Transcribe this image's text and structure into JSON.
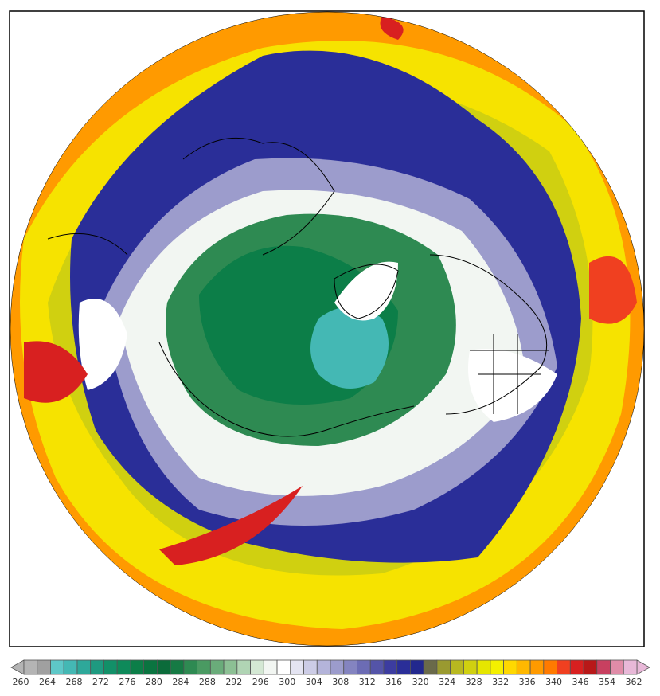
{
  "colorbar": {
    "ticks": [
      260,
      264,
      268,
      272,
      276,
      280,
      284,
      288,
      292,
      296,
      300,
      304,
      308,
      312,
      316,
      320,
      324,
      328,
      332,
      336,
      340,
      346,
      354,
      362
    ],
    "colors": [
      "#b4b4b4",
      "#a0a0a0",
      "#5ec8c8",
      "#44b8b4",
      "#2ea89a",
      "#1e9a80",
      "#129068",
      "#0e8a5a",
      "#0c7e48",
      "#0a7440",
      "#0b6b3a",
      "#167a44",
      "#2e8a52",
      "#4a9a62",
      "#6aac7a",
      "#8cc094",
      "#b0d4b4",
      "#d4e8d4",
      "#f2f6f2",
      "#ffffff",
      "#e4e4f2",
      "#cccce6",
      "#b4b4da",
      "#9c9ccc",
      "#8484c0",
      "#6c6cb4",
      "#5454a8",
      "#3c3ca0",
      "#2a2e98",
      "#22288e",
      "#6a6a4a",
      "#9a9a30",
      "#b8b820",
      "#d0d010",
      "#e6e600",
      "#f4f000",
      "#ffd800",
      "#ffb800",
      "#ff9a00",
      "#ff7a00",
      "#f04020",
      "#d82020",
      "#b81818",
      "#c84060",
      "#e08ca8",
      "#e8b8d8"
    ]
  }
}
